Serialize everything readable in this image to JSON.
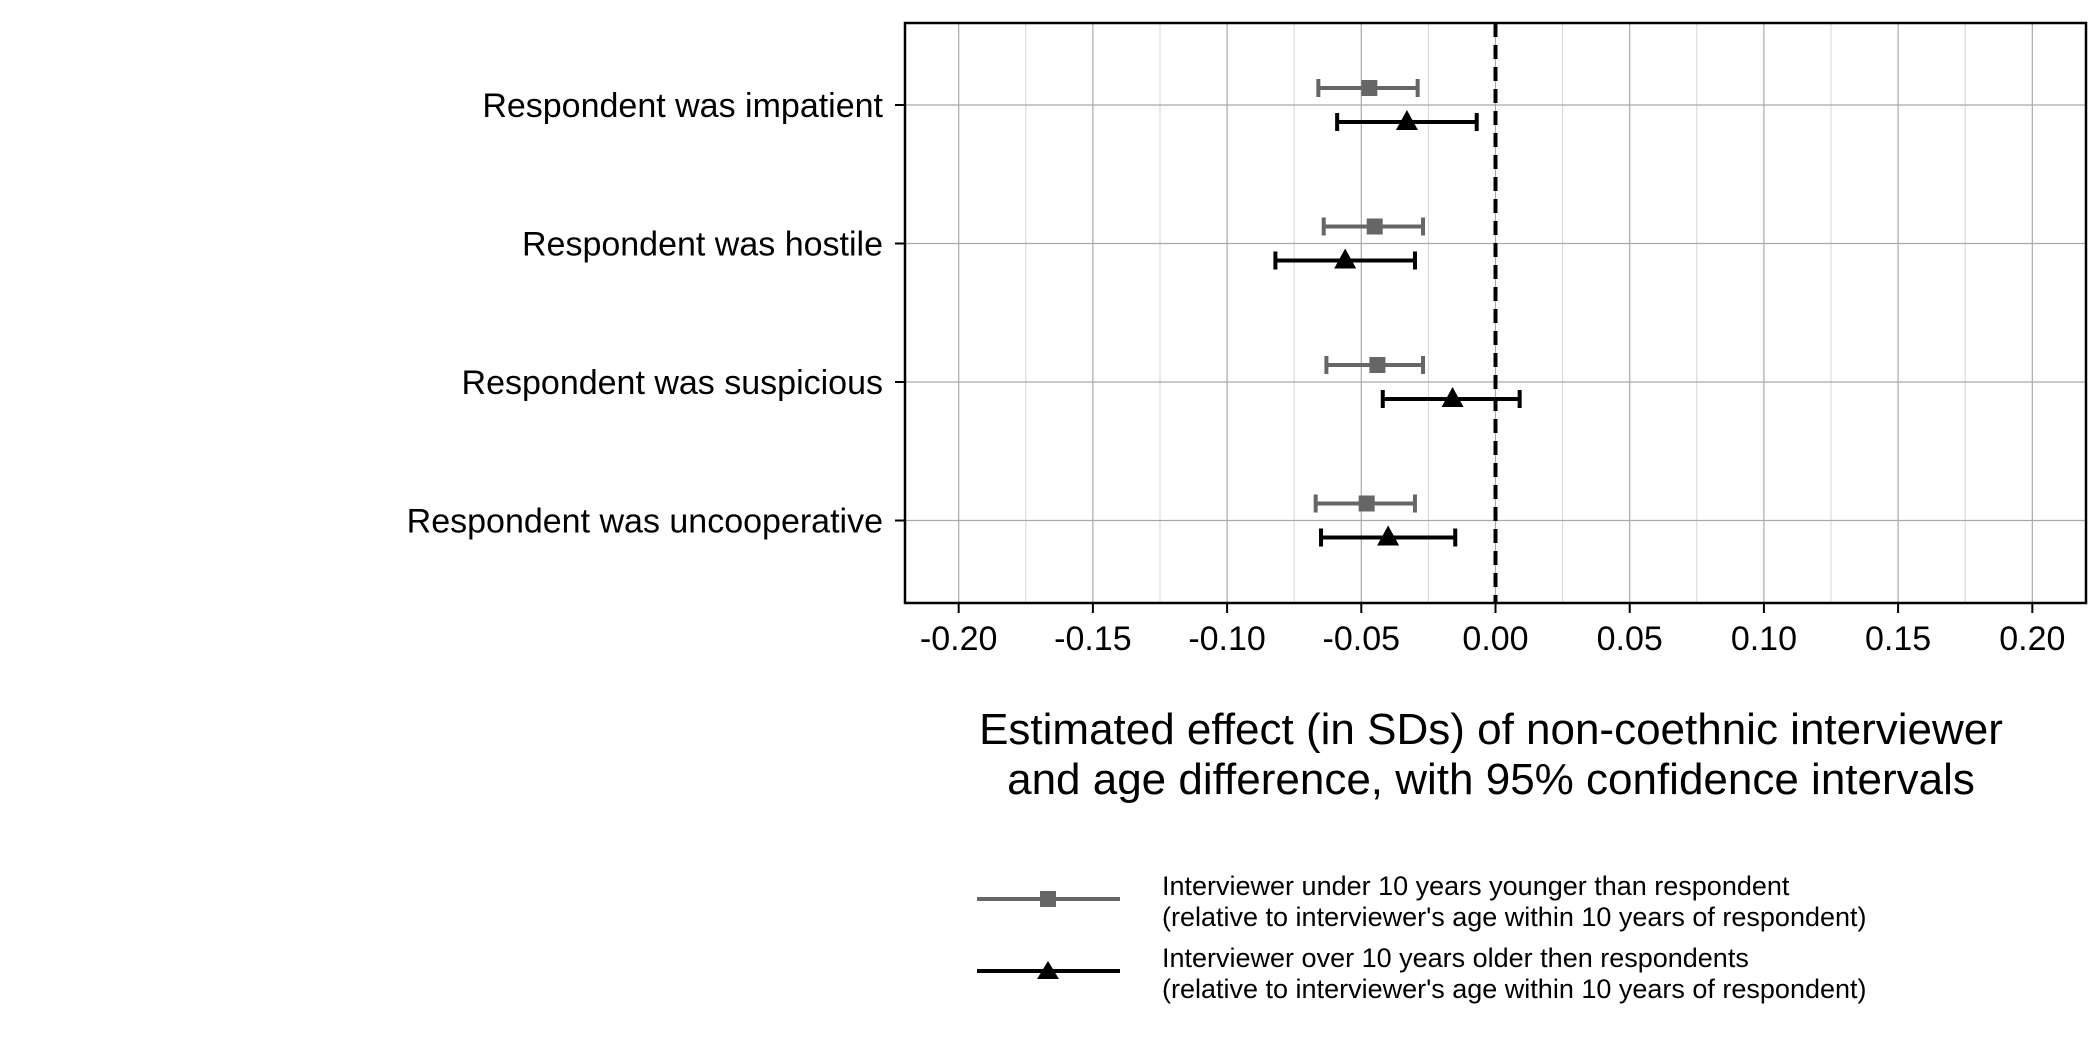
{
  "chart_data": {
    "type": "scatter",
    "subtype": "coefficient-plot-with-error-bars",
    "categories": [
      "Respondent was impatient",
      "Respondent was hostile",
      "Respondent was suspicious",
      "Respondent was uncooperative"
    ],
    "x_ticks": [
      -0.2,
      -0.15,
      -0.1,
      -0.05,
      0.0,
      0.05,
      0.1,
      0.15,
      0.2
    ],
    "x_tick_labels": [
      "-0.20",
      "-0.15",
      "-0.10",
      "-0.05",
      "0.00",
      "0.05",
      "0.10",
      "0.15",
      "0.20"
    ],
    "xlim": [
      -0.22,
      0.22
    ],
    "xlabel_line1": "Estimated effect (in SDs) of non-coethnic interviewer",
    "xlabel_line2": "and age difference, with 95% confidence intervals",
    "reference_line": 0.0,
    "grid": true,
    "legend_position": "bottom",
    "series": [
      {
        "name_line1": "Interviewer under 10 years younger than respondent",
        "name_line2": "(relative to interviewer's age within 10 years of respondent)",
        "marker": "square",
        "color": "#666666",
        "estimates": [
          -0.047,
          -0.045,
          -0.044,
          -0.048
        ],
        "ci_low": [
          -0.066,
          -0.064,
          -0.063,
          -0.067
        ],
        "ci_high": [
          -0.029,
          -0.027,
          -0.027,
          -0.03
        ]
      },
      {
        "name_line1": "Interviewer over 10 years older then respondents",
        "name_line2": "(relative to interviewer's age within 10 years of respondent)",
        "marker": "triangle",
        "color": "#000000",
        "estimates": [
          -0.033,
          -0.056,
          -0.016,
          -0.04
        ],
        "ci_low": [
          -0.059,
          -0.082,
          -0.042,
          -0.065
        ],
        "ci_high": [
          -0.007,
          -0.03,
          0.009,
          -0.015
        ]
      }
    ]
  }
}
